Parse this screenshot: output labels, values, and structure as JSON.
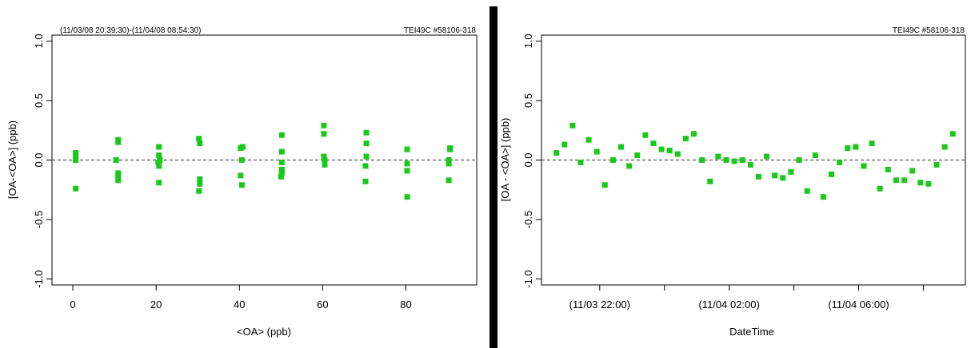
{
  "colors": {
    "point": "#19c919",
    "divider": "#000000",
    "zero_line": "#555555"
  },
  "chart_data": [
    {
      "type": "scatter",
      "header_left": "(11/03/08 20:39:30)-(11/04/08 08:54:30)",
      "header_right": "TEI49C #58106-318",
      "xlabel": "<OA> (ppb)",
      "ylabel": "[OA-<OA>] (ppb)",
      "xlim": [
        -5,
        97
      ],
      "ylim": [
        -1.05,
        1.05
      ],
      "xticks": [
        0,
        20,
        40,
        60,
        80
      ],
      "xtick_labels": [
        "0",
        "20",
        "40",
        "60",
        "80"
      ],
      "yticks": [
        -1.0,
        -0.5,
        0.0,
        0.5,
        1.0
      ],
      "ytick_labels": [
        "-1.0",
        "-0.5",
        "0.0",
        "0.5",
        "1.0"
      ],
      "reference_line_y": 0.0,
      "points": [
        {
          "x": 0.7,
          "y": 0.06
        },
        {
          "x": 0.7,
          "y": 0.03
        },
        {
          "x": 0.7,
          "y": 0.0
        },
        {
          "x": 0.7,
          "y": -0.24
        },
        {
          "x": 10.9,
          "y": 0.17
        },
        {
          "x": 10.9,
          "y": 0.15
        },
        {
          "x": 10.4,
          "y": 0.0
        },
        {
          "x": 10.9,
          "y": -0.11
        },
        {
          "x": 10.9,
          "y": -0.14
        },
        {
          "x": 10.9,
          "y": -0.17
        },
        {
          "x": 20.7,
          "y": 0.11
        },
        {
          "x": 20.7,
          "y": 0.04
        },
        {
          "x": 20.9,
          "y": 0.0
        },
        {
          "x": 20.5,
          "y": -0.02
        },
        {
          "x": 20.7,
          "y": -0.05
        },
        {
          "x": 20.7,
          "y": -0.19
        },
        {
          "x": 30.3,
          "y": 0.18
        },
        {
          "x": 30.5,
          "y": 0.14
        },
        {
          "x": 30.5,
          "y": -0.16
        },
        {
          "x": 30.5,
          "y": -0.2
        },
        {
          "x": 30.3,
          "y": -0.26
        },
        {
          "x": 40.3,
          "y": 0.1
        },
        {
          "x": 40.8,
          "y": 0.11
        },
        {
          "x": 40.6,
          "y": 0.0
        },
        {
          "x": 40.3,
          "y": -0.13
        },
        {
          "x": 40.6,
          "y": -0.21
        },
        {
          "x": 50.2,
          "y": 0.21
        },
        {
          "x": 50.2,
          "y": 0.07
        },
        {
          "x": 50.2,
          "y": -0.02
        },
        {
          "x": 50.2,
          "y": -0.08
        },
        {
          "x": 50.2,
          "y": -0.11
        },
        {
          "x": 50.0,
          "y": -0.14
        },
        {
          "x": 60.3,
          "y": 0.29
        },
        {
          "x": 60.3,
          "y": 0.22
        },
        {
          "x": 60.3,
          "y": 0.03
        },
        {
          "x": 60.5,
          "y": 0.0
        },
        {
          "x": 60.5,
          "y": -0.04
        },
        {
          "x": 70.5,
          "y": 0.23
        },
        {
          "x": 70.5,
          "y": 0.14
        },
        {
          "x": 70.5,
          "y": 0.03
        },
        {
          "x": 70.3,
          "y": -0.05
        },
        {
          "x": 70.3,
          "y": -0.18
        },
        {
          "x": 80.3,
          "y": 0.09
        },
        {
          "x": 80.3,
          "y": -0.03
        },
        {
          "x": 80.3,
          "y": -0.09
        },
        {
          "x": 80.3,
          "y": -0.31
        },
        {
          "x": 90.6,
          "y": 0.1
        },
        {
          "x": 90.6,
          "y": 0.09
        },
        {
          "x": 90.3,
          "y": 0.0
        },
        {
          "x": 90.3,
          "y": -0.03
        },
        {
          "x": 90.3,
          "y": -0.17
        }
      ]
    },
    {
      "type": "scatter",
      "header_right": "TEI49C #58106-318",
      "xlabel": "DateTime",
      "ylabel": "[OA - <OA>] (ppb)",
      "x_unit": "hours since 11/03 00:00",
      "xlim": [
        20.2,
        33.3
      ],
      "ylim": [
        -1.05,
        1.05
      ],
      "xticks": [
        22,
        26,
        30
      ],
      "xtick_labels": [
        "(11/03 22:00)",
        "(11/04 02:00)",
        "(11/04 06:00)"
      ],
      "minor_xticks": [
        24,
        28,
        32
      ],
      "yticks": [
        -1.0,
        -0.5,
        0.0,
        0.5,
        1.0
      ],
      "ytick_labels": [
        "-1.0",
        "-0.5",
        "0.0",
        "0.5",
        "1.0"
      ],
      "reference_line_y": 0.0,
      "points": [
        {
          "x": 20.66,
          "y": 0.06
        },
        {
          "x": 20.91,
          "y": 0.13
        },
        {
          "x": 21.16,
          "y": 0.29
        },
        {
          "x": 21.41,
          "y": -0.02
        },
        {
          "x": 21.66,
          "y": 0.17
        },
        {
          "x": 21.91,
          "y": 0.07
        },
        {
          "x": 22.16,
          "y": -0.21
        },
        {
          "x": 22.41,
          "y": 0.0
        },
        {
          "x": 22.66,
          "y": 0.11
        },
        {
          "x": 22.91,
          "y": -0.05
        },
        {
          "x": 23.16,
          "y": 0.04
        },
        {
          "x": 23.41,
          "y": 0.21
        },
        {
          "x": 23.66,
          "y": 0.14
        },
        {
          "x": 23.91,
          "y": 0.09
        },
        {
          "x": 24.16,
          "y": 0.08
        },
        {
          "x": 24.41,
          "y": 0.05
        },
        {
          "x": 24.66,
          "y": 0.18
        },
        {
          "x": 24.91,
          "y": 0.22
        },
        {
          "x": 25.16,
          "y": 0.0
        },
        {
          "x": 25.41,
          "y": -0.18
        },
        {
          "x": 25.66,
          "y": 0.03
        },
        {
          "x": 25.91,
          "y": 0.0
        },
        {
          "x": 26.16,
          "y": -0.01
        },
        {
          "x": 26.41,
          "y": 0.0
        },
        {
          "x": 26.66,
          "y": -0.04
        },
        {
          "x": 26.91,
          "y": -0.14
        },
        {
          "x": 27.16,
          "y": 0.03
        },
        {
          "x": 27.41,
          "y": -0.13
        },
        {
          "x": 27.66,
          "y": -0.15
        },
        {
          "x": 27.91,
          "y": -0.1
        },
        {
          "x": 28.16,
          "y": 0.0
        },
        {
          "x": 28.41,
          "y": -0.26
        },
        {
          "x": 28.66,
          "y": 0.04
        },
        {
          "x": 28.91,
          "y": -0.31
        },
        {
          "x": 29.16,
          "y": -0.12
        },
        {
          "x": 29.41,
          "y": -0.02
        },
        {
          "x": 29.66,
          "y": 0.1
        },
        {
          "x": 29.91,
          "y": 0.11
        },
        {
          "x": 30.16,
          "y": -0.05
        },
        {
          "x": 30.41,
          "y": 0.14
        },
        {
          "x": 30.66,
          "y": -0.24
        },
        {
          "x": 30.91,
          "y": -0.08
        },
        {
          "x": 31.16,
          "y": -0.17
        },
        {
          "x": 31.41,
          "y": -0.17
        },
        {
          "x": 31.66,
          "y": -0.09
        },
        {
          "x": 31.91,
          "y": -0.19
        },
        {
          "x": 32.16,
          "y": -0.2
        },
        {
          "x": 32.41,
          "y": -0.04
        },
        {
          "x": 32.66,
          "y": 0.11
        },
        {
          "x": 32.91,
          "y": 0.22
        }
      ]
    }
  ]
}
